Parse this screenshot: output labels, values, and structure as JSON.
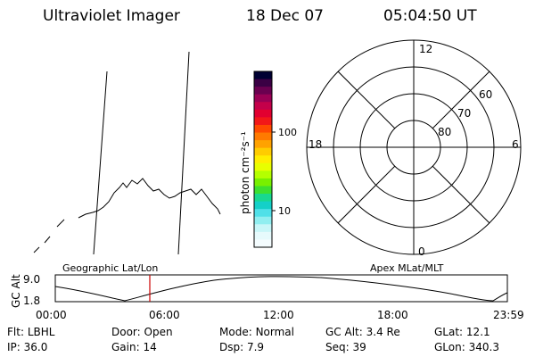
{
  "header": {
    "title": "Ultraviolet Imager",
    "date": "18 Dec 07",
    "time": "05:04:50 UT"
  },
  "colorbar": {
    "label": "photon cm⁻²s⁻¹",
    "ticks": [
      "100",
      "10"
    ],
    "colors": [
      "#000033",
      "#3a0044",
      "#6a0050",
      "#9a0055",
      "#c4004a",
      "#e20030",
      "#f21818",
      "#ff4a00",
      "#ff7a00",
      "#ffa200",
      "#ffcc00",
      "#ffee00",
      "#e8ff00",
      "#b4ff00",
      "#78f000",
      "#3ce030",
      "#18d890",
      "#14d0c8",
      "#50e0e8",
      "#90eef0",
      "#c8f6f8",
      "#e6fafc",
      "#f4fcfe"
    ]
  },
  "polar_plot": {
    "clock_labels": [
      "12",
      "18",
      "6",
      "0"
    ],
    "lat_labels": [
      "60",
      "70",
      "80"
    ]
  },
  "timeline": {
    "left_label": "Geographic Lat/Lon",
    "right_label": "Apex MLat/MLT",
    "axis_title": "GC Alt",
    "y_ticks": [
      "9.0",
      "1.8"
    ],
    "x_ticks": [
      "00:00",
      "06:00",
      "12:00",
      "18:00",
      "23:59"
    ],
    "marker_color": "#cc0000"
  },
  "info": {
    "row1": [
      {
        "label": "Flt:",
        "value": "LBHL"
      },
      {
        "label": "Door:",
        "value": "Open"
      },
      {
        "label": "Mode:",
        "value": "Normal"
      },
      {
        "label": "GC Alt:",
        "value": "3.4 Re"
      },
      {
        "label": "GLat:",
        "value": "12.1"
      }
    ],
    "row2": [
      {
        "label": "IP:",
        "value": "36.0"
      },
      {
        "label": "Gain:",
        "value": "14"
      },
      {
        "label": "Dsp:",
        "value": "7.9"
      },
      {
        "label": "Seq:",
        "value": "39"
      },
      {
        "label": "GLon:",
        "value": "340.3"
      }
    ]
  }
}
